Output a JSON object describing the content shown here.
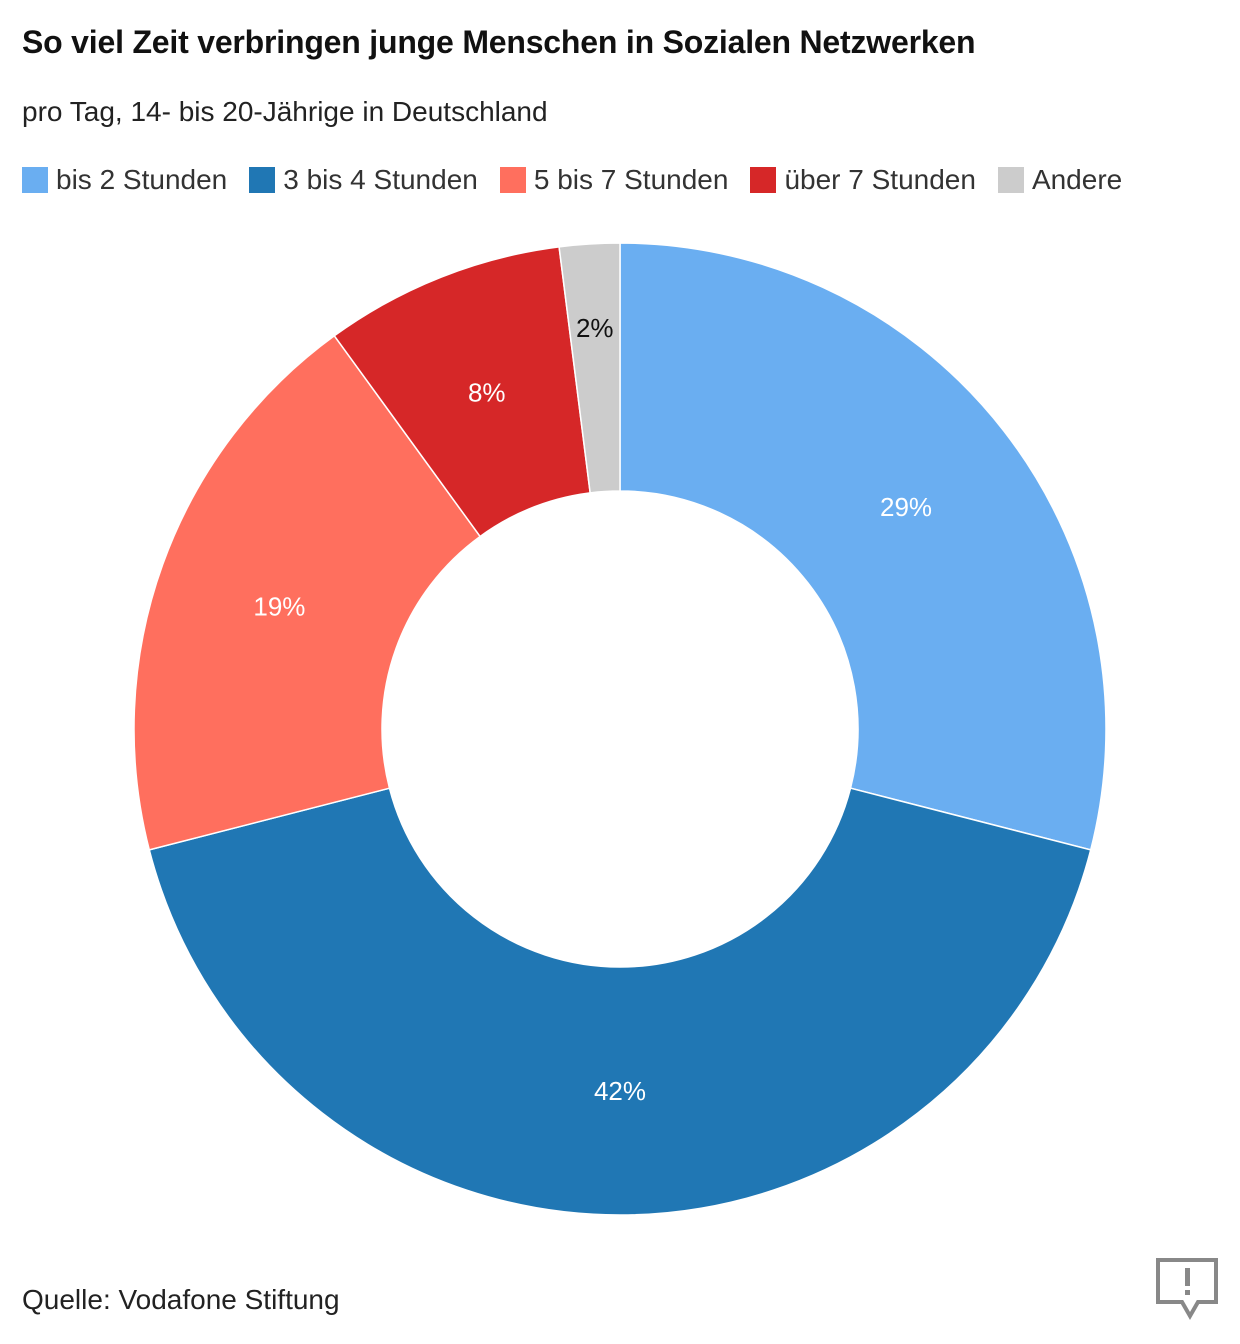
{
  "header": {
    "title": "So viel Zeit verbringen junge Menschen in Sozialen Netzwerken",
    "subtitle": "pro Tag, 14- bis 20-Jährige in Deutschland"
  },
  "chart_data": {
    "type": "pie",
    "title": "So viel Zeit verbringen junge Menschen in Sozialen Netzwerken",
    "subtitle": "pro Tag, 14- bis 20-Jährige in Deutschland",
    "donut": true,
    "legend_position": "top-left",
    "slices": [
      {
        "name": "bis 2 Stunden",
        "value": 29,
        "label": "29%",
        "color": "#6aaef1",
        "label_color": "#ffffff"
      },
      {
        "name": "3 bis 4 Stunden",
        "value": 42,
        "label": "42%",
        "color": "#2077b4",
        "label_color": "#ffffff"
      },
      {
        "name": "5 bis 7 Stunden",
        "value": 19,
        "label": "19%",
        "color": "#ff6f5e",
        "label_color": "#ffffff"
      },
      {
        "name": "über 7 Stunden",
        "value": 8,
        "label": "8%",
        "color": "#d62728",
        "label_color": "#ffffff"
      },
      {
        "name": "Andere",
        "value": 2,
        "label": "2%",
        "color": "#cccccc",
        "label_color": "#111111"
      }
    ]
  },
  "footer": {
    "source": "Quelle: Vodafone Stiftung",
    "logo_icon": "speech-bubble-exclamation-icon"
  }
}
